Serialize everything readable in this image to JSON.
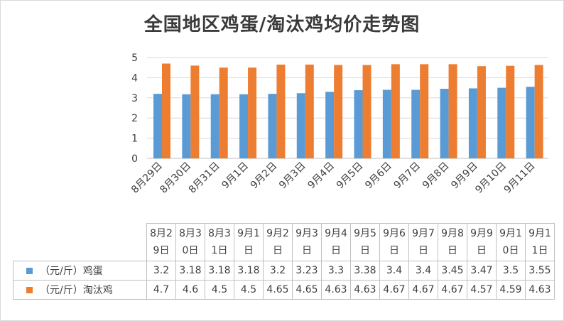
{
  "chart_data": {
    "type": "bar",
    "title": "全国地区鸡蛋/淘汰鸡均价走势图",
    "categories": [
      "8月29日",
      "8月30日",
      "8月31日",
      "9月1日",
      "9月2日",
      "9月3日",
      "9月4日",
      "9月5日",
      "9月6日",
      "9月7日",
      "9月8日",
      "9月9日",
      "9月10日",
      "9月11日"
    ],
    "series": [
      {
        "name": "（元/斤）鸡蛋",
        "color": "#5b9bd5",
        "values": [
          3.2,
          3.18,
          3.18,
          3.18,
          3.2,
          3.23,
          3.3,
          3.38,
          3.4,
          3.4,
          3.45,
          3.47,
          3.5,
          3.55
        ]
      },
      {
        "name": "（元/斤）淘汰鸡",
        "color": "#ed7d31",
        "values": [
          4.7,
          4.6,
          4.5,
          4.5,
          4.65,
          4.65,
          4.63,
          4.63,
          4.67,
          4.67,
          4.67,
          4.57,
          4.59,
          4.63
        ]
      }
    ],
    "ylim": [
      0,
      5
    ],
    "yticks": [
      0,
      1,
      2,
      3,
      4,
      5
    ],
    "grid": true,
    "data_table": true
  }
}
